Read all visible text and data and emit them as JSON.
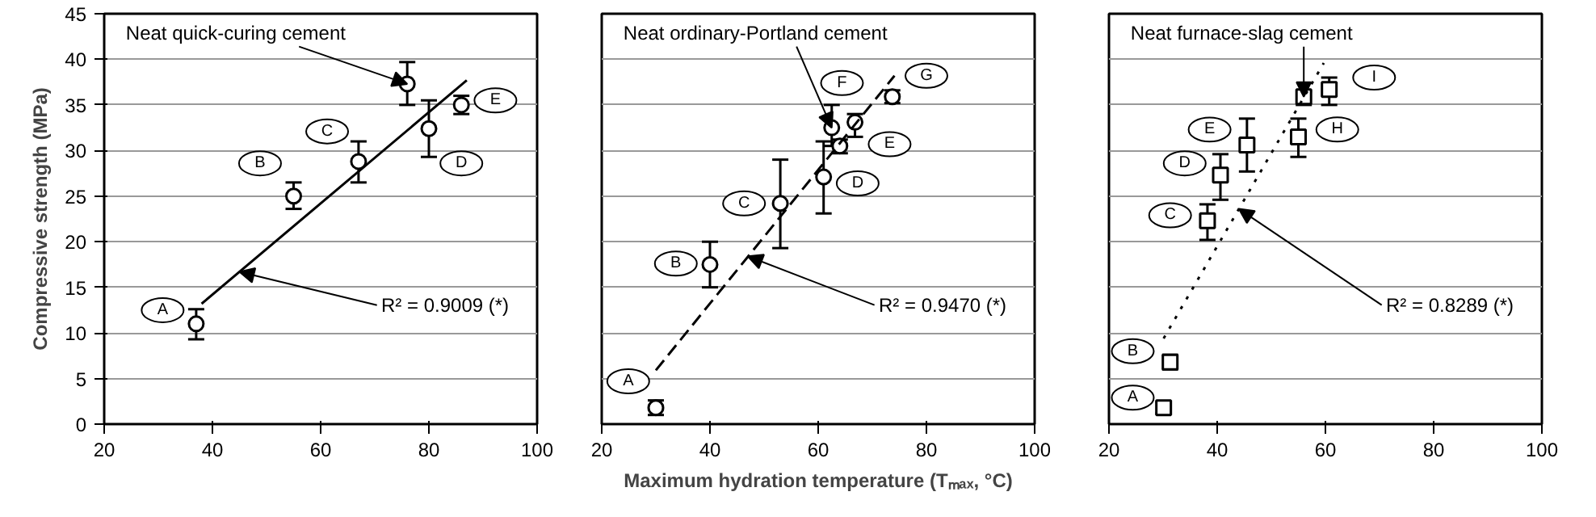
{
  "chart_data": [
    {
      "type": "scatter",
      "ylabel": "Compressive strength (MPa)",
      "grid": "y",
      "xlim": [
        20,
        100
      ],
      "ylim": [
        0,
        45
      ],
      "xticks": [
        20,
        40,
        60,
        80,
        100
      ],
      "yticks": [
        0,
        5,
        10,
        15,
        20,
        25,
        30,
        35,
        40,
        45
      ],
      "series": [
        {
          "marker": "circle",
          "color": "#000000",
          "x": [
            37,
            55,
            67,
            80,
            86,
            76
          ],
          "values": [
            11,
            25,
            28.8,
            32.4,
            35,
            37.3
          ],
          "errors": [
            [
              9.3,
              12.6
            ],
            [
              23.6,
              26.5
            ],
            [
              26.5,
              31
            ],
            [
              29.3,
              35.5
            ],
            [
              34,
              36
            ],
            [
              35,
              39.7
            ]
          ]
        },
        {
          "type": "line",
          "color": "#000000",
          "line_style": "solid",
          "x": [
            38,
            87
          ],
          "values": [
            13.2,
            37.7
          ]
        }
      ],
      "annotations": [
        {
          "text": "Neat quick-curing cement",
          "x": 76,
          "y": 37.3
        },
        {
          "text": "R² = 0.9009 (*)",
          "x": 45,
          "y": 16.7
        },
        {
          "text": "A",
          "x": 30.8,
          "y": 12.5
        },
        {
          "text": "B",
          "x": 48.8,
          "y": 28.6
        },
        {
          "text": "C",
          "x": 61.2,
          "y": 32.1
        },
        {
          "text": "D",
          "x": 86,
          "y": 28.6
        },
        {
          "text": "E",
          "x": 92.3,
          "y": 35.5
        }
      ]
    },
    {
      "type": "scatter",
      "xlabel": "Maximum hydration temperature (Tₘₐₓ, °C)",
      "grid": "y",
      "tick_labels": "x",
      "xlim": [
        20,
        100
      ],
      "ylim": [
        0,
        45
      ],
      "xticks": [
        20,
        40,
        60,
        80,
        100
      ],
      "yticks": [
        0,
        5,
        10,
        15,
        20,
        25,
        30,
        35,
        40,
        45
      ],
      "series": [
        {
          "marker": "circle",
          "color": "#000000",
          "x": [
            30,
            40,
            53,
            61,
            64,
            66.8,
            73.7,
            62.5
          ],
          "values": [
            1.8,
            17.5,
            24.2,
            27.1,
            30.5,
            33.1,
            35.9,
            32.5
          ],
          "errors": [
            [
              1,
              2.6
            ],
            [
              15,
              20
            ],
            [
              19.3,
              29
            ],
            [
              23.1,
              31
            ],
            [
              29.7,
              31.2
            ],
            [
              31.5,
              34
            ],
            [
              35.2,
              36.6
            ],
            [
              30.5,
              35
            ]
          ]
        },
        {
          "type": "line",
          "color": "#000000",
          "line_style": "dashed",
          "x": [
            30,
            74.1
          ],
          "values": [
            5.9,
            38.2
          ]
        }
      ],
      "annotations": [
        {
          "text": "Neat ordinary-Portland cement",
          "x": 62.5,
          "y": 32.5
        },
        {
          "text": "R² = 0.9470 (*)",
          "x": 47,
          "y": 18.4
        },
        {
          "text": "A",
          "x": 24.9,
          "y": 4.7
        },
        {
          "text": "B",
          "x": 33.7,
          "y": 17.6
        },
        {
          "text": "C",
          "x": 46.3,
          "y": 24.2
        },
        {
          "text": "D",
          "x": 67.3,
          "y": 26.4
        },
        {
          "text": "E",
          "x": 73.2,
          "y": 30.7
        },
        {
          "text": "F",
          "x": 64.4,
          "y": 37.4
        },
        {
          "text": "G",
          "x": 80,
          "y": 38.2
        }
      ]
    },
    {
      "type": "scatter",
      "grid": "y",
      "tick_labels": "x",
      "xlim": [
        20,
        100
      ],
      "ylim": [
        0,
        45
      ],
      "xticks": [
        20,
        40,
        60,
        80,
        100
      ],
      "yticks": [
        0,
        5,
        10,
        15,
        20,
        25,
        30,
        35,
        40,
        45
      ],
      "series": [
        {
          "marker": "square",
          "color": "#000000",
          "x": [
            30.1,
            31.3,
            38.2,
            40.6,
            45.5,
            55,
            60.7,
            56
          ],
          "values": [
            1.8,
            6.8,
            22.3,
            27.3,
            30.6,
            31.5,
            36.7,
            35.9
          ],
          "errors": [
            [
              1.2,
              2.4
            ],
            [
              6,
              7.6
            ],
            [
              20.2,
              24.1
            ],
            [
              24.6,
              29.6
            ],
            [
              27.7,
              33.5
            ],
            [
              29.3,
              33.5
            ],
            [
              35,
              38
            ],
            [
              35,
              36.5
            ]
          ]
        },
        {
          "type": "line",
          "color": "#000000",
          "line_style": "dotted",
          "x": [
            30.1,
            59.7
          ],
          "values": [
            9.4,
            39.6
          ]
        }
      ],
      "annotations": [
        {
          "text": "Neat furnace-slag cement",
          "x": 56,
          "y": 35.9
        },
        {
          "text": "R² = 0.8289 (*)",
          "x": 44,
          "y": 23.6
        },
        {
          "text": "A",
          "x": 24.4,
          "y": 2.9
        },
        {
          "text": "B",
          "x": 24.4,
          "y": 8
        },
        {
          "text": "C",
          "x": 31.3,
          "y": 22.9
        },
        {
          "text": "D",
          "x": 34,
          "y": 28.6
        },
        {
          "text": "E",
          "x": 38.6,
          "y": 32.3
        },
        {
          "text": "H",
          "x": 62.2,
          "y": 32.3
        },
        {
          "text": "I",
          "x": 69,
          "y": 38
        }
      ]
    }
  ]
}
